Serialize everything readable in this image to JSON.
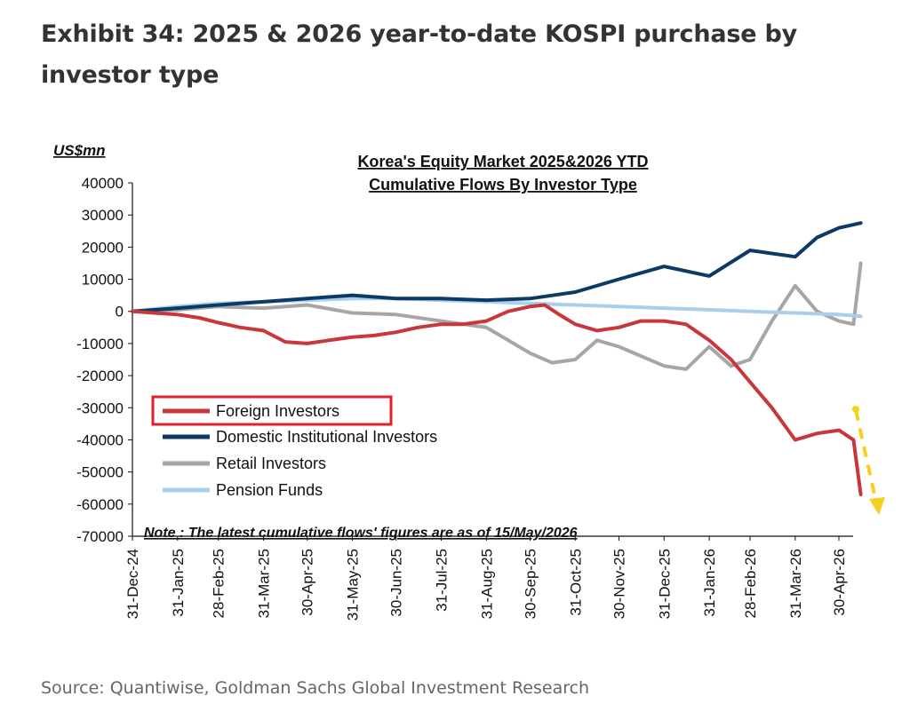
{
  "exhibit_title": "Exhibit 34: 2025 & 2026 year-to-date KOSPI purchase by investor type",
  "source": "Source: Quantiwise, Goldman Sachs Global Investment Research",
  "colors": {
    "foreign": "#c8373a",
    "domestic": "#0c3a66",
    "retail": "#a6a6a6",
    "pension": "#a9cfef",
    "highlight_box": "#e0202a",
    "arrow": "#f5d020"
  },
  "chart_data": {
    "type": "line",
    "title_line1": "Korea's Equity Market 2025&2026 YTD",
    "title_line2": "Cumulative Flows By Investor Type",
    "ylabel": "US$mn",
    "ylim": [
      -70000,
      40000
    ],
    "yticks": [
      "40000",
      "30000",
      "20000",
      "10000",
      "0",
      "-10000",
      "-20000",
      "-30000",
      "-40000",
      "-50000",
      "-60000",
      "-70000"
    ],
    "xticks": [
      "31-Dec-24",
      "31-Jan-25",
      "28-Feb-25",
      "31-Mar-25",
      "30-Apr-25",
      "31-May-25",
      "30-Jun-25",
      "31-Jul-25",
      "31-Aug-25",
      "30-Sep-25",
      "31-Oct-25",
      "30-Nov-25",
      "31-Dec-25",
      "31-Jan-26",
      "28-Feb-26",
      "31-Mar-26",
      "30-Apr-26"
    ],
    "legend_position": "bottom-left",
    "note": "Note : The latest cumulative  flows' figures are as of 15/May/2026",
    "series": [
      {
        "name": "Foreign Investors",
        "color": "#c8373a",
        "points": [
          [
            "31-Dec-24",
            0
          ],
          [
            "15-Jan-25",
            -500
          ],
          [
            "31-Jan-25",
            -1000
          ],
          [
            "15-Feb-25",
            -2000
          ],
          [
            "28-Feb-25",
            -3500
          ],
          [
            "15-Mar-25",
            -5000
          ],
          [
            "31-Mar-25",
            -6000
          ],
          [
            "15-Apr-25",
            -9500
          ],
          [
            "30-Apr-25",
            -10000
          ],
          [
            "15-May-25",
            -9000
          ],
          [
            "31-May-25",
            -8000
          ],
          [
            "15-Jun-25",
            -7500
          ],
          [
            "30-Jun-25",
            -6500
          ],
          [
            "15-Jul-25",
            -5000
          ],
          [
            "31-Jul-25",
            -4000
          ],
          [
            "15-Aug-25",
            -4000
          ],
          [
            "31-Aug-25",
            -3000
          ],
          [
            "15-Sep-25",
            0
          ],
          [
            "30-Sep-25",
            1500
          ],
          [
            "10-Oct-25",
            2000
          ],
          [
            "20-Oct-25",
            -1000
          ],
          [
            "31-Oct-25",
            -4000
          ],
          [
            "15-Nov-25",
            -6000
          ],
          [
            "30-Nov-25",
            -5000
          ],
          [
            "15-Dec-25",
            -3000
          ],
          [
            "31-Dec-25",
            -3000
          ],
          [
            "15-Jan-26",
            -4000
          ],
          [
            "31-Jan-26",
            -9000
          ],
          [
            "15-Feb-26",
            -15000
          ],
          [
            "28-Feb-26",
            -22000
          ],
          [
            "15-Mar-26",
            -30000
          ],
          [
            "31-Mar-26",
            -40000
          ],
          [
            "15-Apr-26",
            -38000
          ],
          [
            "30-Apr-26",
            -37000
          ],
          [
            "10-May-26",
            -40000
          ],
          [
            "15-May-26",
            -57000
          ]
        ]
      },
      {
        "name": "Domestic Institutional Investors",
        "color": "#0c3a66",
        "points": [
          [
            "31-Dec-24",
            0
          ],
          [
            "31-Jan-25",
            1000
          ],
          [
            "28-Feb-25",
            2000
          ],
          [
            "31-Mar-25",
            3000
          ],
          [
            "30-Apr-25",
            4000
          ],
          [
            "31-May-25",
            5000
          ],
          [
            "30-Jun-25",
            4000
          ],
          [
            "31-Jul-25",
            4000
          ],
          [
            "31-Aug-25",
            3500
          ],
          [
            "30-Sep-25",
            4000
          ],
          [
            "31-Oct-25",
            6000
          ],
          [
            "30-Nov-25",
            10000
          ],
          [
            "31-Dec-25",
            14000
          ],
          [
            "31-Jan-26",
            11000
          ],
          [
            "28-Feb-26",
            19000
          ],
          [
            "31-Mar-26",
            17000
          ],
          [
            "15-Apr-26",
            23000
          ],
          [
            "30-Apr-26",
            26000
          ],
          [
            "15-May-26",
            27500
          ]
        ]
      },
      {
        "name": "Retail Investors",
        "color": "#a6a6a6",
        "points": [
          [
            "31-Dec-24",
            0
          ],
          [
            "31-Jan-25",
            500
          ],
          [
            "28-Feb-25",
            1500
          ],
          [
            "31-Mar-25",
            1000
          ],
          [
            "30-Apr-25",
            2000
          ],
          [
            "31-May-25",
            -500
          ],
          [
            "30-Jun-25",
            -1000
          ],
          [
            "31-Jul-25",
            -3000
          ],
          [
            "31-Aug-25",
            -5000
          ],
          [
            "30-Sep-25",
            -13000
          ],
          [
            "15-Oct-25",
            -16000
          ],
          [
            "31-Oct-25",
            -15000
          ],
          [
            "15-Nov-25",
            -9000
          ],
          [
            "30-Nov-25",
            -11000
          ],
          [
            "31-Dec-25",
            -17000
          ],
          [
            "15-Jan-26",
            -18000
          ],
          [
            "31-Jan-26",
            -11000
          ],
          [
            "15-Feb-26",
            -17000
          ],
          [
            "28-Feb-26",
            -15000
          ],
          [
            "15-Mar-26",
            -3000
          ],
          [
            "31-Mar-26",
            8000
          ],
          [
            "15-Apr-26",
            0
          ],
          [
            "30-Apr-26",
            -3000
          ],
          [
            "10-May-26",
            -4000
          ],
          [
            "15-May-26",
            15000
          ]
        ]
      },
      {
        "name": "Pension Funds",
        "color": "#a9cfef",
        "points": [
          [
            "31-Dec-24",
            0
          ],
          [
            "31-Jan-25",
            1500
          ],
          [
            "28-Feb-25",
            2500
          ],
          [
            "31-Mar-25",
            3000
          ],
          [
            "30-Apr-25",
            3500
          ],
          [
            "31-May-25",
            4000
          ],
          [
            "30-Jun-25",
            4000
          ],
          [
            "31-Jul-25",
            3500
          ],
          [
            "31-Aug-25",
            3000
          ],
          [
            "30-Sep-25",
            2500
          ],
          [
            "31-Oct-25",
            2000
          ],
          [
            "30-Nov-25",
            1500
          ],
          [
            "31-Dec-25",
            1000
          ],
          [
            "31-Jan-26",
            500
          ],
          [
            "28-Feb-26",
            0
          ],
          [
            "31-Mar-26",
            -500
          ],
          [
            "30-Apr-26",
            -1000
          ],
          [
            "15-May-26",
            -1500
          ]
        ]
      }
    ]
  }
}
